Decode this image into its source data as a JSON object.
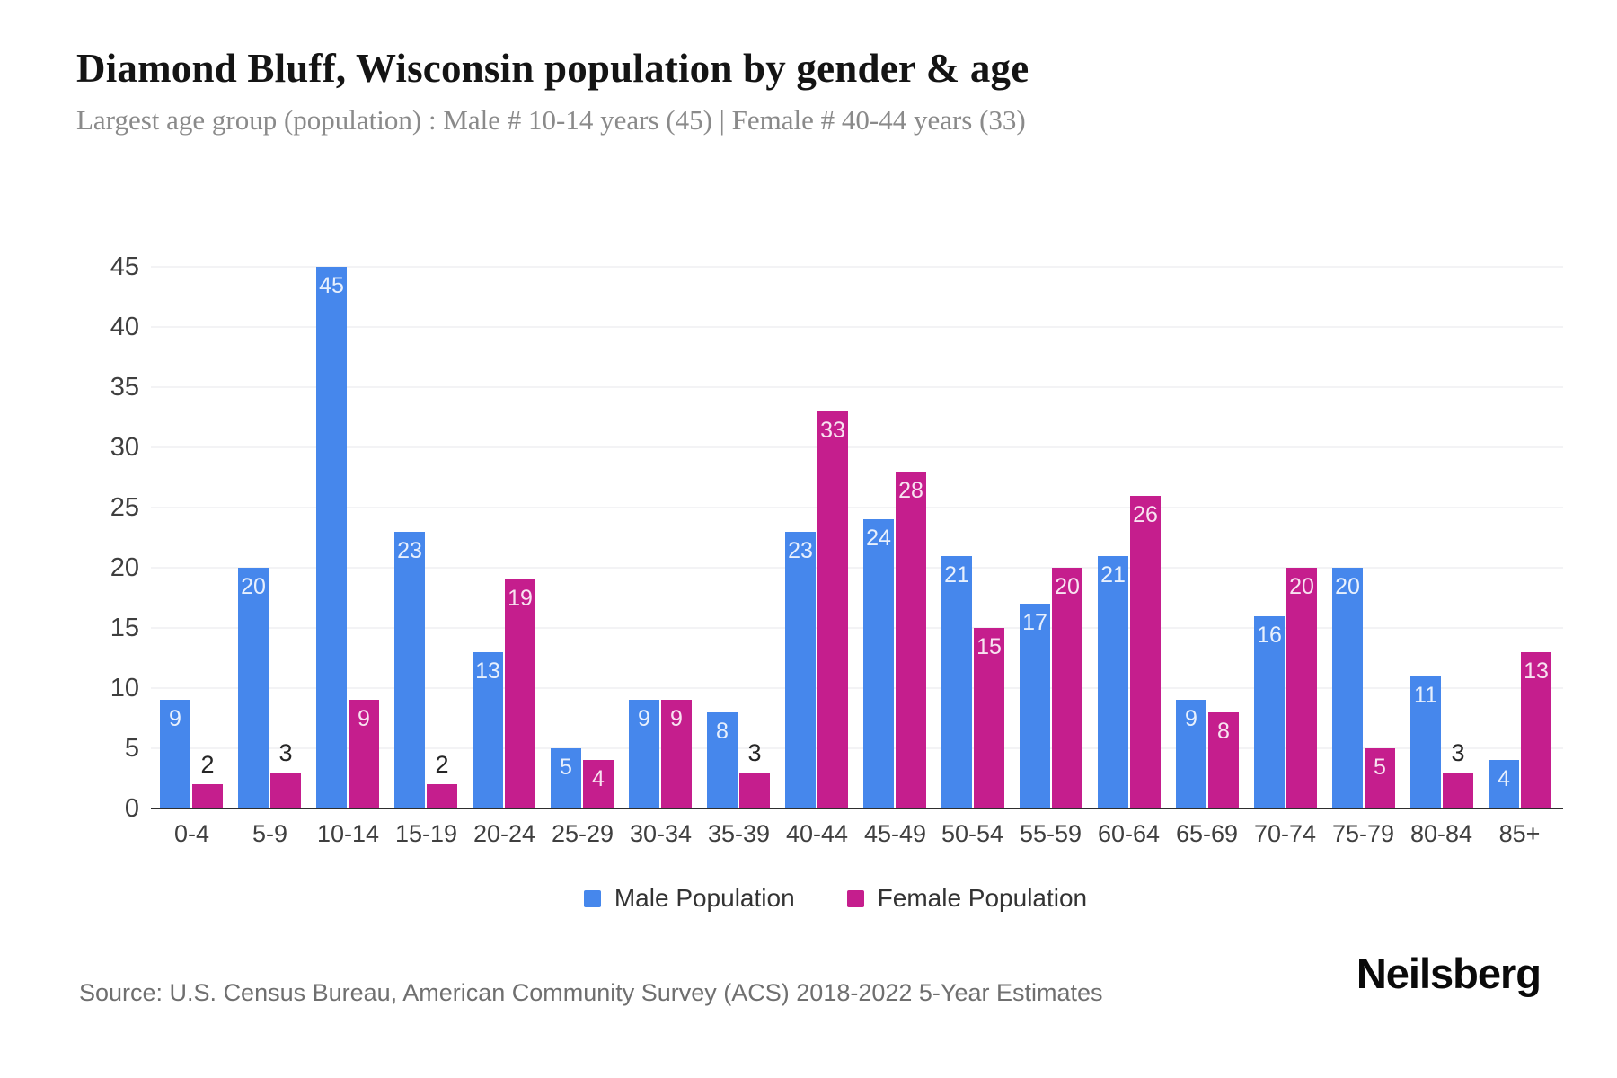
{
  "header": {
    "title": "Diamond Bluff, Wisconsin population by gender & age",
    "subtitle": "Largest age group (population) : Male # 10-14 years (45) | Female # 40-44 years (33)"
  },
  "footer": {
    "source": "Source: U.S. Census Bureau, American Community Survey (ACS) 2018-2022 5-Year Estimates",
    "brand": "Neilsberg"
  },
  "colors": {
    "male": "#4687ec",
    "female": "#c51e8d",
    "grid": "#f3f3f5",
    "axis": "#2e2e2e",
    "inside_label": "rgba(255,255,255,0.88)",
    "outside_label": "#262626"
  },
  "chart_data": {
    "type": "bar",
    "title": "Diamond Bluff, Wisconsin population by gender & age",
    "subtitle": "Largest age group (population) : Male # 10-14 years (45) | Female # 40-44 years (33)",
    "categories": [
      "0-4",
      "5-9",
      "10-14",
      "15-19",
      "20-24",
      "25-29",
      "30-34",
      "35-39",
      "40-44",
      "45-49",
      "50-54",
      "55-59",
      "60-64",
      "65-69",
      "70-74",
      "75-79",
      "80-84",
      "85+"
    ],
    "series": [
      {
        "name": "Male Population",
        "color": "#4687ec",
        "values": [
          9,
          20,
          45,
          23,
          13,
          5,
          9,
          8,
          23,
          24,
          21,
          17,
          21,
          9,
          16,
          20,
          11,
          4
        ]
      },
      {
        "name": "Female Population",
        "color": "#c51e8d",
        "values": [
          2,
          3,
          9,
          2,
          19,
          4,
          9,
          3,
          33,
          28,
          15,
          20,
          26,
          8,
          20,
          5,
          3,
          13
        ]
      }
    ],
    "xlabel": "",
    "ylabel": "",
    "ylim": [
      0,
      45
    ],
    "yticks": [
      0,
      5,
      10,
      15,
      20,
      25,
      30,
      35,
      40,
      45
    ],
    "grid": true,
    "legend_position": "bottom",
    "value_label_rule": "values <= 3 shown in dark above bar, values >= 4 shown in white inside bar top"
  }
}
